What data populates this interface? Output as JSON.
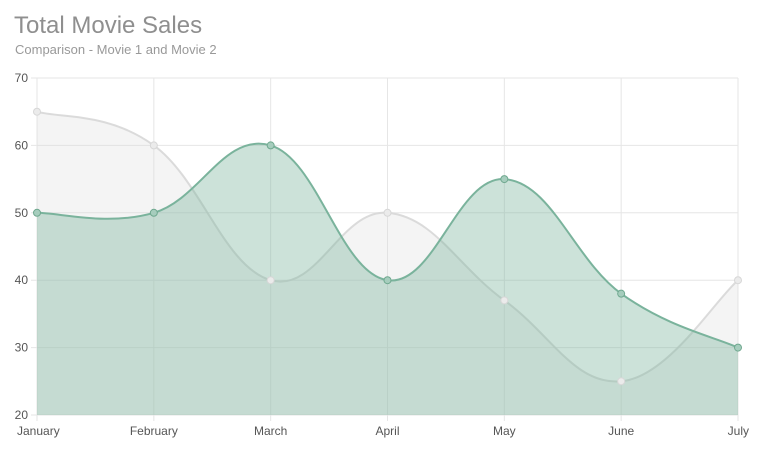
{
  "chart_data": {
    "type": "area",
    "title": "Total Movie Sales",
    "subtitle": "Comparison - Movie 1 and Movie 2",
    "categories": [
      "January",
      "February",
      "March",
      "April",
      "May",
      "June",
      "July"
    ],
    "series": [
      {
        "values": [
          65,
          60,
          40,
          50,
          37,
          25,
          40
        ],
        "color": "#dcdcdc"
      },
      {
        "values": [
          50,
          50,
          60,
          40,
          55,
          38,
          30
        ],
        "color": "#7ab39c"
      }
    ],
    "ylim": [
      20,
      70
    ],
    "yticks": [
      20,
      30,
      40,
      50,
      60,
      70
    ],
    "grid": true,
    "xlabel": "",
    "ylabel": ""
  }
}
